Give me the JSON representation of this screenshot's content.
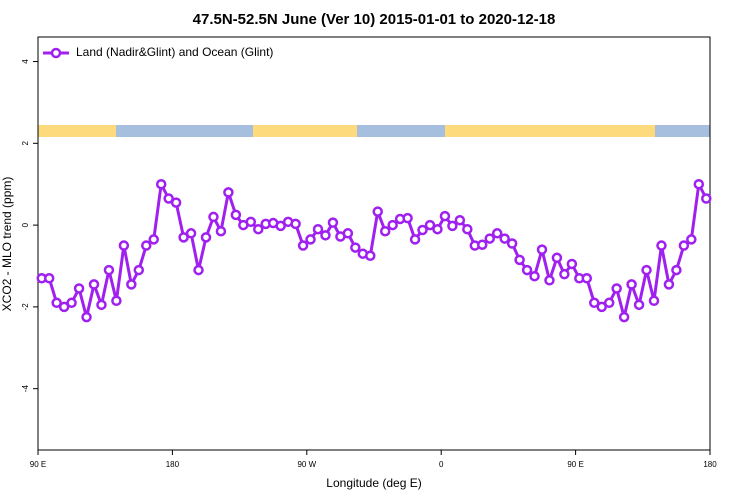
{
  "chart_data": {
    "type": "line",
    "title": "47.5N-52.5N June (Ver 10)   2015-01-01 to 2020-12-18",
    "x_label": "Longitude (deg E)",
    "y_label": "XCO2 - MLO trend (ppm)",
    "xlim": [
      90,
      540
    ],
    "xticks": [
      {
        "value": 90,
        "label": "90 E"
      },
      180,
      {
        "value": 270,
        "label": "90 W"
      },
      {
        "value": 360,
        "label": "0"
      },
      {
        "value": 450,
        "label": "90 E"
      },
      {
        "value": 540,
        "label": "180"
      }
    ],
    "ylim": [
      -5.5,
      4.6
    ],
    "yticks": [
      -4,
      -2,
      0,
      2,
      4
    ],
    "grid": false,
    "legend": "top-left",
    "x": [
      92.5,
      97.5,
      102.5,
      107.5,
      112.5,
      117.5,
      122.5,
      127.5,
      132.5,
      137.5,
      142.5,
      147.5,
      152.5,
      157.5,
      162.5,
      167.5,
      172.5,
      177.5,
      182.5,
      187.5,
      192.5,
      197.5,
      202.5,
      207.5,
      212.5,
      217.5,
      222.5,
      227.5,
      232.5,
      237.5,
      242.5,
      247.5,
      252.5,
      257.5,
      262.5,
      267.5,
      272.5,
      277.5,
      282.5,
      287.5,
      292.5,
      297.5,
      302.5,
      307.5,
      312.5,
      317.5,
      322.5,
      327.5,
      332.5,
      337.5,
      342.5,
      347.5,
      352.5,
      357.5,
      362.5,
      367.5,
      372.5,
      377.5,
      382.5,
      387.5,
      392.5,
      397.5,
      402.5,
      407.5,
      412.5,
      417.5,
      422.5,
      427.5,
      432.5,
      437.5,
      442.5,
      447.5,
      452.5,
      457.5,
      462.5,
      467.5,
      472.5,
      477.5,
      482.5,
      487.5,
      492.5,
      497.5,
      502.5,
      507.5,
      512.5,
      517.5,
      522.5,
      527.5,
      532.5,
      537.5
    ],
    "series": [
      {
        "name": "Land (Nadir&Glint) and Ocean (Glint)",
        "color": "#a020f0",
        "values": [
          -1.3,
          -1.3,
          -1.9,
          -2.0,
          -1.9,
          -1.55,
          -2.25,
          -1.45,
          -1.95,
          -1.1,
          -1.85,
          -0.5,
          -1.45,
          -1.1,
          -0.5,
          -0.35,
          1.0,
          0.65,
          0.55,
          -0.3,
          -0.2,
          -1.1,
          -0.3,
          0.2,
          -0.15,
          0.8,
          0.25,
          0.0,
          0.08,
          -0.1,
          0.03,
          0.05,
          -0.02,
          0.08,
          0.03,
          -0.5,
          -0.35,
          -0.1,
          -0.25,
          0.06,
          -0.28,
          -0.2,
          -0.55,
          -0.7,
          -0.75,
          0.33,
          -0.15,
          0.0,
          0.15,
          0.17,
          -0.35,
          -0.12,
          0.0,
          -0.1,
          0.22,
          -0.02,
          0.12,
          -0.1,
          -0.5,
          -0.48,
          -0.33,
          -0.2,
          -0.33,
          -0.45,
          -0.85,
          -1.1,
          -1.25,
          -0.6,
          -1.35,
          -0.8,
          -1.2,
          -0.95,
          -1.3,
          -1.3,
          -1.9,
          -2.0,
          -1.9,
          -1.55,
          -2.25,
          -1.45,
          -1.95,
          -1.1,
          -1.85,
          -0.5,
          -1.45,
          -1.1,
          -0.5,
          -0.35,
          1.0,
          0.65
        ]
      }
    ]
  }
}
